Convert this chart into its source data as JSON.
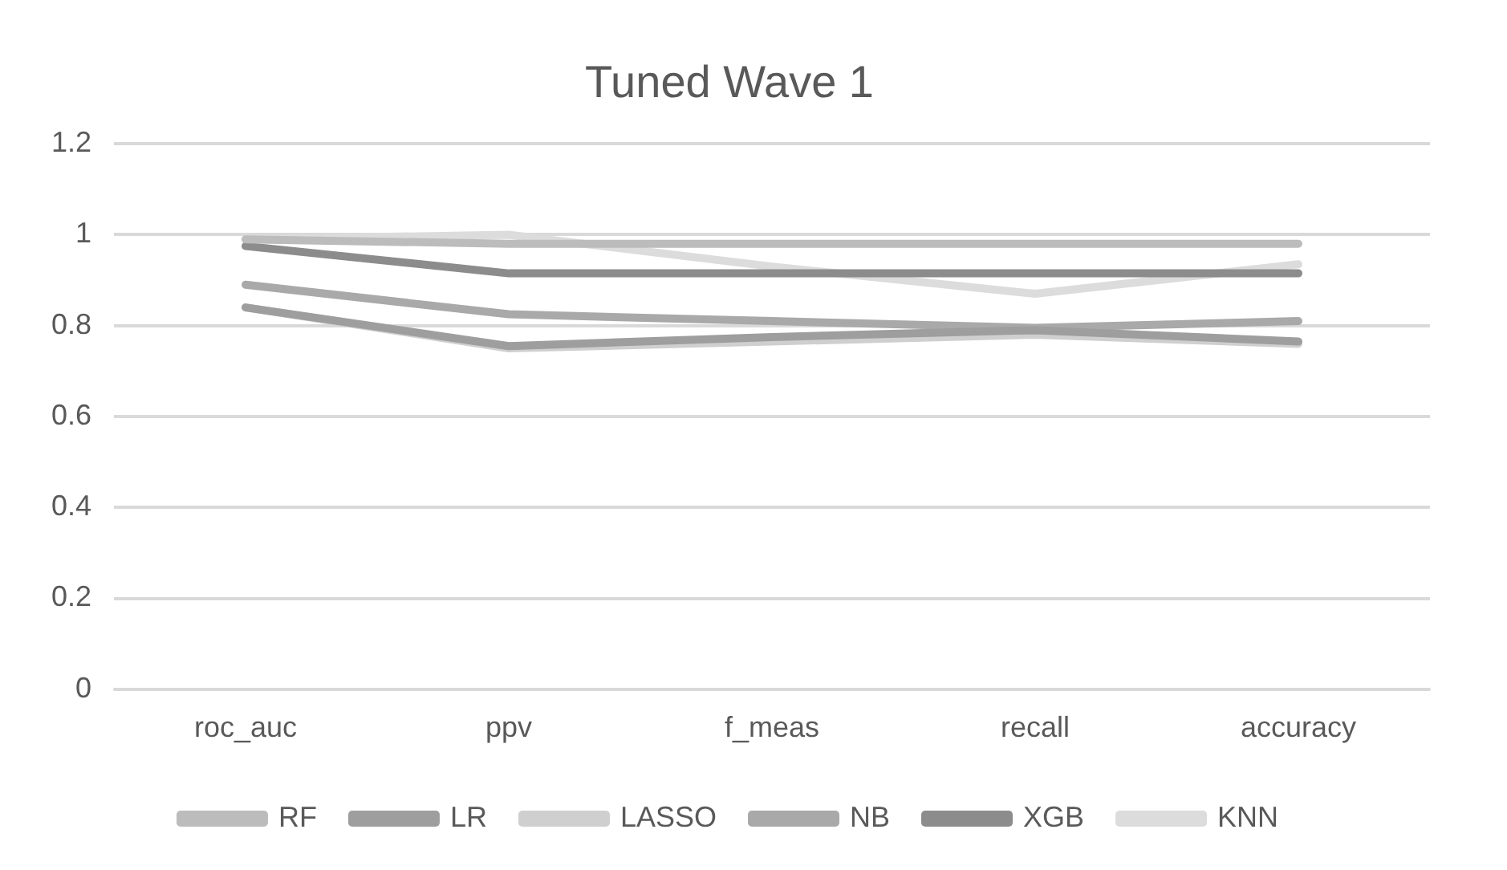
{
  "chart_data": {
    "type": "line",
    "title": "Tuned Wave 1",
    "categories": [
      "roc_auc",
      "ppv",
      "f_meas",
      "recall",
      "accuracy"
    ],
    "series": [
      {
        "name": "RF",
        "color": "#bcbcbc",
        "values": [
          0.99,
          0.98,
          0.98,
          0.98,
          0.98
        ]
      },
      {
        "name": "LR",
        "color": "#9e9e9e",
        "values": [
          0.84,
          0.755,
          0.775,
          0.79,
          0.765
        ]
      },
      {
        "name": "LASSO",
        "color": "#cfcfcf",
        "values": [
          0.84,
          0.75,
          0.765,
          0.78,
          0.76
        ]
      },
      {
        "name": "NB",
        "color": "#a9a9a9",
        "values": [
          0.89,
          0.825,
          0.81,
          0.795,
          0.81
        ]
      },
      {
        "name": "XGB",
        "color": "#8c8c8c",
        "values": [
          0.975,
          0.915,
          0.915,
          0.915,
          0.915
        ]
      },
      {
        "name": "KNN",
        "color": "#dcdcdc",
        "values": [
          0.99,
          1.0,
          0.93,
          0.87,
          0.935
        ]
      }
    ],
    "ylim": [
      0,
      1.2
    ],
    "yticks": [
      0,
      0.2,
      0.4,
      0.6,
      0.8,
      1,
      1.2
    ],
    "grid": "y",
    "legend": "bottom",
    "marker": "none",
    "line_style": "solid"
  }
}
